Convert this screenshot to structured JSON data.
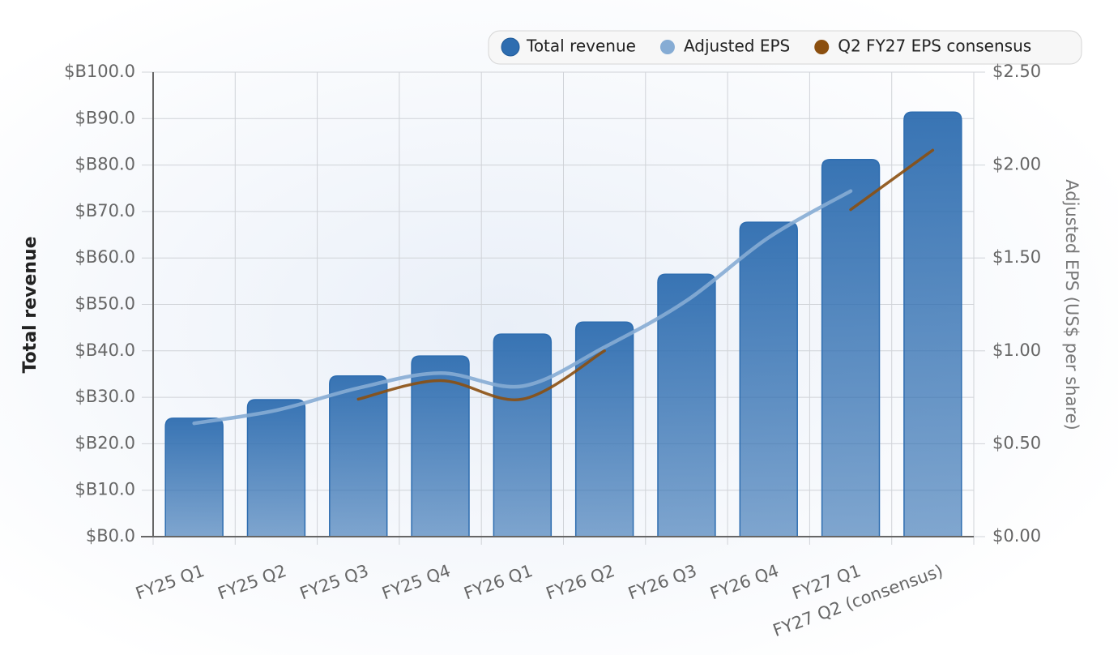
{
  "chart_data": {
    "type": "bar-line",
    "categories": [
      "FY25 Q1",
      "FY25 Q2",
      "FY25 Q3",
      "FY25 Q4",
      "FY26 Q1",
      "FY26 Q2",
      "FY26 Q3",
      "FY26 Q4",
      "FY27 Q1",
      "FY27 Q2 (consensus)"
    ],
    "series": [
      {
        "name": "Total revenue",
        "type": "bar",
        "color": "#2e6db0",
        "values": [
          25.5,
          29.5,
          34.6,
          38.9,
          43.6,
          46.2,
          56.5,
          67.7,
          81.2,
          91.4
        ]
      },
      {
        "name": "Adjusted EPS",
        "type": "line",
        "axis": "y2",
        "color": "#86acd4",
        "values": [
          0.61,
          0.68,
          0.8,
          0.88,
          0.81,
          1.02,
          1.27,
          1.61,
          1.86,
          null
        ]
      },
      {
        "name": "Q2 FY27 EPS consensus",
        "type": "line",
        "axis": "y2",
        "color": "#8b4f0f",
        "values": [
          null,
          null,
          0.74,
          0.84,
          0.74,
          1.0,
          null,
          null,
          1.76,
          2.08
        ]
      }
    ],
    "ylabel": "Total revenue",
    "y2label": "Adjusted EPS (US$ per share)",
    "ylim": [
      0,
      100
    ],
    "yticks": [
      {
        "value": 0,
        "label": "$B0.0"
      },
      {
        "value": 10,
        "label": "$B10.0"
      },
      {
        "value": 20,
        "label": "$B20.0"
      },
      {
        "value": 30,
        "label": "$B30.0"
      },
      {
        "value": 40,
        "label": "$B40.0"
      },
      {
        "value": 50,
        "label": "$B50.0"
      },
      {
        "value": 60,
        "label": "$B60.0"
      },
      {
        "value": 70,
        "label": "$B70.0"
      },
      {
        "value": 80,
        "label": "$B80.0"
      },
      {
        "value": 90,
        "label": "$B90.0"
      },
      {
        "value": 100,
        "label": "$B100.0"
      }
    ],
    "y2lim": [
      0,
      2.5
    ],
    "y2ticks": [
      {
        "value": 0,
        "label": "$0.00"
      },
      {
        "value": 0.5,
        "label": "$0.50"
      },
      {
        "value": 1,
        "label": "$1.00"
      },
      {
        "value": 1.5,
        "label": "$1.50"
      },
      {
        "value": 2,
        "label": "$2.00"
      },
      {
        "value": 2.5,
        "label": "$2.50"
      }
    ],
    "grid": true,
    "legend": "top-right"
  }
}
